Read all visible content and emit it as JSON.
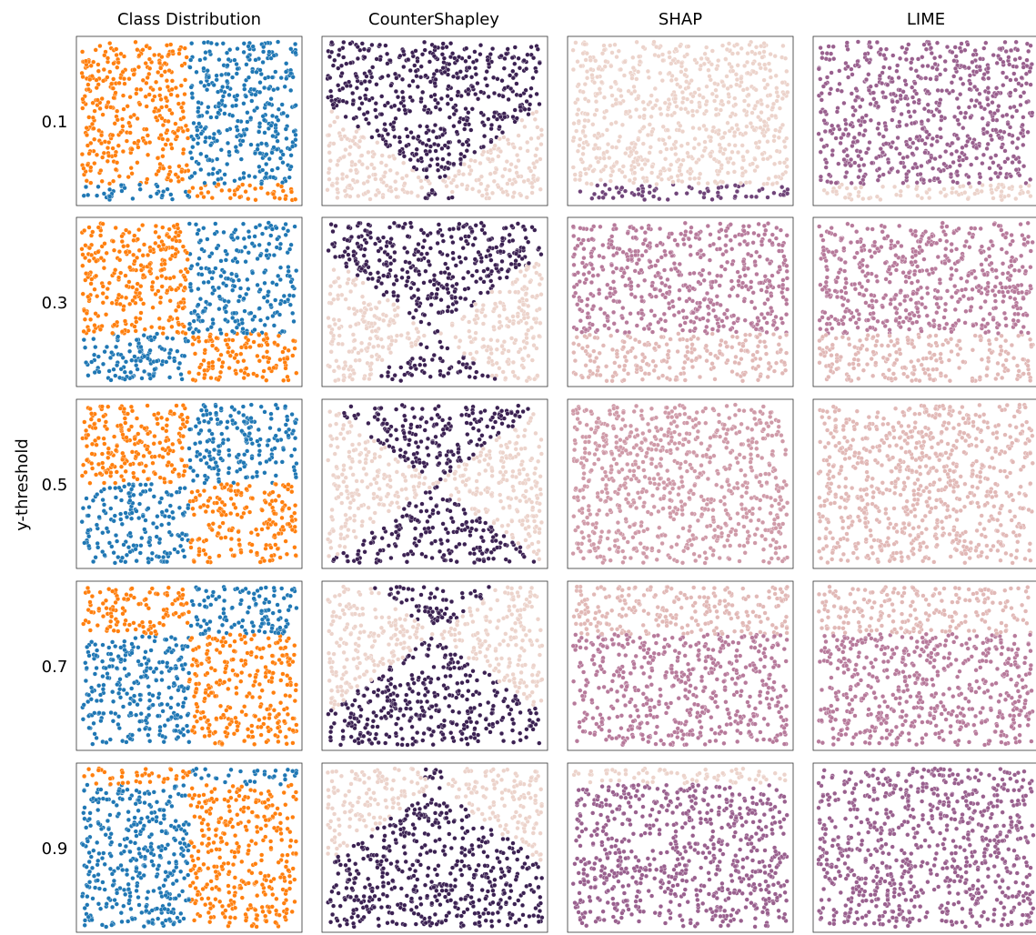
{
  "figure": {
    "row_axis_label": "y-threshold"
  },
  "chart_data": {
    "type": "scatter",
    "column_titles": [
      "Class Distribution",
      "CounterShapley",
      "SHAP",
      "LIME"
    ],
    "row_labels": [
      "0.1",
      "0.3",
      "0.5",
      "0.7",
      "0.9"
    ],
    "row_thresholds": [
      0.1,
      0.3,
      0.5,
      0.7,
      0.9
    ],
    "x_split": 0.5,
    "xlim": [
      0,
      1
    ],
    "ylim": [
      0,
      1
    ],
    "points_per_panel": 800,
    "grid": false,
    "legend": "none",
    "class_colors": {
      "class_a": "#ff7f0e",
      "class_b": "#1f77b4"
    },
    "class_rule": "class_a when (x < x_split) == (y >= threshold)",
    "attribution_palette": [
      "#ecd3cb",
      "#e1b8b6",
      "#cf9aa8",
      "#b77a9b",
      "#99608e",
      "#6f4479",
      "#3b2152"
    ],
    "attribution_levels": {
      "CounterShapley": "split: dark where |x-0.5| < |y-threshold|, light otherwise",
      "SHAP": [
        {
          "bands": [
            [
              0.0,
              0.1,
              5
            ],
            [
              0.1,
              1.0,
              0
            ]
          ]
        },
        {
          "bands": [
            [
              0.0,
              0.3,
              1
            ],
            [
              0.3,
              1.0,
              3
            ]
          ]
        },
        {
          "bands": [
            [
              0.0,
              1.0,
              2
            ]
          ]
        },
        {
          "bands": [
            [
              0.0,
              0.7,
              3
            ],
            [
              0.7,
              1.0,
              1
            ]
          ]
        },
        {
          "bands": [
            [
              0.0,
              0.9,
              4
            ],
            [
              0.9,
              1.0,
              0
            ]
          ]
        }
      ],
      "LIME": [
        {
          "bands": [
            [
              0.0,
              0.1,
              0
            ],
            [
              0.1,
              1.0,
              4
            ]
          ]
        },
        {
          "bands": [
            [
              0.0,
              0.3,
              1
            ],
            [
              0.3,
              1.0,
              3
            ]
          ]
        },
        {
          "bands": [
            [
              0.0,
              1.0,
              1
            ]
          ]
        },
        {
          "bands": [
            [
              0.0,
              0.7,
              3
            ],
            [
              0.7,
              1.0,
              1
            ]
          ]
        },
        {
          "bands": [
            [
              0.0,
              0.9,
              4
            ],
            [
              0.9,
              1.0,
              4
            ]
          ]
        }
      ]
    }
  }
}
